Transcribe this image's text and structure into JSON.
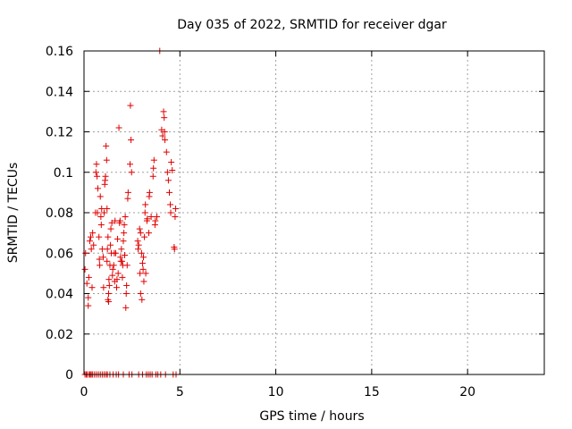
{
  "chart_data": {
    "type": "scatter",
    "title": "Day 035 of 2022, SRMTID for receiver dgar",
    "xlabel": "GPS time / hours",
    "ylabel": "SRMTID / TECUs",
    "xlim": [
      0,
      24
    ],
    "ylim": [
      0,
      0.16
    ],
    "xticks": [
      0,
      5,
      10,
      15,
      20
    ],
    "yticks": [
      0,
      0.02,
      0.04,
      0.06,
      0.08,
      0.1,
      0.12,
      0.14,
      0.16
    ],
    "ytick_labels": [
      "0",
      "0.02",
      "0.04",
      "0.06",
      "0.08",
      "0.1",
      "0.12",
      "0.14",
      "0.16"
    ],
    "grid": true,
    "marker": "+",
    "series": [
      {
        "color": "#e00000",
        "points": [
          [
            0.05,
            0.052
          ],
          [
            0.05,
            0.0
          ],
          [
            0.08,
            0.06
          ],
          [
            0.12,
            0.0
          ],
          [
            0.15,
            0.045
          ],
          [
            0.18,
            0.0
          ],
          [
            0.22,
            0.038
          ],
          [
            0.22,
            0.034
          ],
          [
            0.25,
            0.048
          ],
          [
            0.28,
            0.0
          ],
          [
            0.3,
            0.066
          ],
          [
            0.32,
            0.0
          ],
          [
            0.35,
            0.068
          ],
          [
            0.38,
            0.062
          ],
          [
            0.38,
            0.0
          ],
          [
            0.42,
            0.043
          ],
          [
            0.45,
            0.07
          ],
          [
            0.45,
            0.0
          ],
          [
            0.5,
            0.064
          ],
          [
            0.55,
            0.0
          ],
          [
            0.6,
            0.08
          ],
          [
            0.62,
            0.1
          ],
          [
            0.65,
            0.104
          ],
          [
            0.65,
            0.0
          ],
          [
            0.68,
            0.098
          ],
          [
            0.7,
            0.08
          ],
          [
            0.72,
            0.092
          ],
          [
            0.75,
            0.0
          ],
          [
            0.78,
            0.068
          ],
          [
            0.8,
            0.057
          ],
          [
            0.82,
            0.054
          ],
          [
            0.85,
            0.0
          ],
          [
            0.85,
            0.088
          ],
          [
            0.88,
            0.078
          ],
          [
            0.9,
            0.074
          ],
          [
            0.92,
            0.082
          ],
          [
            0.95,
            0.062
          ],
          [
            0.95,
            0.0
          ],
          [
            1.0,
            0.058
          ],
          [
            1.02,
            0.043
          ],
          [
            1.05,
            0.08
          ],
          [
            1.05,
            0.0
          ],
          [
            1.08,
            0.094
          ],
          [
            1.1,
            0.096
          ],
          [
            1.12,
            0.098
          ],
          [
            1.15,
            0.0
          ],
          [
            1.15,
            0.113
          ],
          [
            1.18,
            0.106
          ],
          [
            1.2,
            0.056
          ],
          [
            1.2,
            0.082
          ],
          [
            1.22,
            0.062
          ],
          [
            1.22,
            0.0
          ],
          [
            1.25,
            0.068
          ],
          [
            1.25,
            0.037
          ],
          [
            1.28,
            0.04
          ],
          [
            1.28,
            0.036
          ],
          [
            1.3,
            0.047
          ],
          [
            1.32,
            0.044
          ],
          [
            1.35,
            0.054
          ],
          [
            1.35,
            0.0
          ],
          [
            1.38,
            0.064
          ],
          [
            1.4,
            0.072
          ],
          [
            1.42,
            0.06
          ],
          [
            1.45,
            0.075
          ],
          [
            1.48,
            0.049
          ],
          [
            1.5,
            0.052
          ],
          [
            1.52,
            0.0
          ],
          [
            1.55,
            0.054
          ],
          [
            1.58,
            0.06
          ],
          [
            1.6,
            0.046
          ],
          [
            1.62,
            0.076
          ],
          [
            1.65,
            0.06
          ],
          [
            1.68,
            0.0
          ],
          [
            1.7,
            0.043
          ],
          [
            1.72,
            0.047
          ],
          [
            1.75,
            0.067
          ],
          [
            1.78,
            0.05
          ],
          [
            1.8,
            0.0
          ],
          [
            1.82,
            0.122
          ],
          [
            1.85,
            0.075
          ],
          [
            1.88,
            0.076
          ],
          [
            1.9,
            0.058
          ],
          [
            1.92,
            0.056
          ],
          [
            1.95,
            0.062
          ],
          [
            1.98,
            0.056
          ],
          [
            2.0,
            0.048
          ],
          [
            2.02,
            0.054
          ],
          [
            2.05,
            0.0
          ],
          [
            2.05,
            0.066
          ],
          [
            2.08,
            0.07
          ],
          [
            2.1,
            0.074
          ],
          [
            2.12,
            0.059
          ],
          [
            2.15,
            0.078
          ],
          [
            2.18,
            0.033
          ],
          [
            2.2,
            0.04
          ],
          [
            2.22,
            0.044
          ],
          [
            2.25,
            0.054
          ],
          [
            2.28,
            0.087
          ],
          [
            2.3,
            0.09
          ],
          [
            2.35,
            0.0
          ],
          [
            2.4,
            0.104
          ],
          [
            2.42,
            0.133
          ],
          [
            2.45,
            0.116
          ],
          [
            2.48,
            0.1
          ],
          [
            2.5,
            0.0
          ],
          [
            2.8,
            0.066
          ],
          [
            2.82,
            0.062
          ],
          [
            2.85,
            0.064
          ],
          [
            2.85,
            0.0
          ],
          [
            2.9,
            0.072
          ],
          [
            2.92,
            0.05
          ],
          [
            2.95,
            0.07
          ],
          [
            2.95,
            0.04
          ],
          [
            3.0,
            0.06
          ],
          [
            3.02,
            0.037
          ],
          [
            3.05,
            0.055
          ],
          [
            3.05,
            0.0
          ],
          [
            3.08,
            0.052
          ],
          [
            3.1,
            0.058
          ],
          [
            3.12,
            0.046
          ],
          [
            3.15,
            0.068
          ],
          [
            3.18,
            0.08
          ],
          [
            3.2,
            0.084
          ],
          [
            3.22,
            0.05
          ],
          [
            3.25,
            0.0
          ],
          [
            3.28,
            0.076
          ],
          [
            3.3,
            0.077
          ],
          [
            3.35,
            0.0
          ],
          [
            3.38,
            0.07
          ],
          [
            3.4,
            0.088
          ],
          [
            3.42,
            0.09
          ],
          [
            3.45,
            0.0
          ],
          [
            3.5,
            0.078
          ],
          [
            3.55,
            0.0
          ],
          [
            3.6,
            0.098
          ],
          [
            3.62,
            0.102
          ],
          [
            3.65,
            0.106
          ],
          [
            3.7,
            0.074
          ],
          [
            3.72,
            0.076
          ],
          [
            3.75,
            0.0
          ],
          [
            3.8,
            0.078
          ],
          [
            3.85,
            0.0
          ],
          [
            3.95,
            0.16
          ],
          [
            4.0,
            0.0
          ],
          [
            4.05,
            0.121
          ],
          [
            4.1,
            0.118
          ],
          [
            4.15,
            0.13
          ],
          [
            4.18,
            0.127
          ],
          [
            4.2,
            0.12
          ],
          [
            4.22,
            0.116
          ],
          [
            4.25,
            0.0
          ],
          [
            4.3,
            0.11
          ],
          [
            4.35,
            0.1
          ],
          [
            4.4,
            0.096
          ],
          [
            4.45,
            0.09
          ],
          [
            4.5,
            0.084
          ],
          [
            4.52,
            0.08
          ],
          [
            4.55,
            0.105
          ],
          [
            4.6,
            0.101
          ],
          [
            4.65,
            0.0
          ],
          [
            4.7,
            0.063
          ],
          [
            4.72,
            0.062
          ],
          [
            4.75,
            0.078
          ],
          [
            4.78,
            0.082
          ],
          [
            4.8,
            0.0
          ]
        ]
      }
    ]
  }
}
